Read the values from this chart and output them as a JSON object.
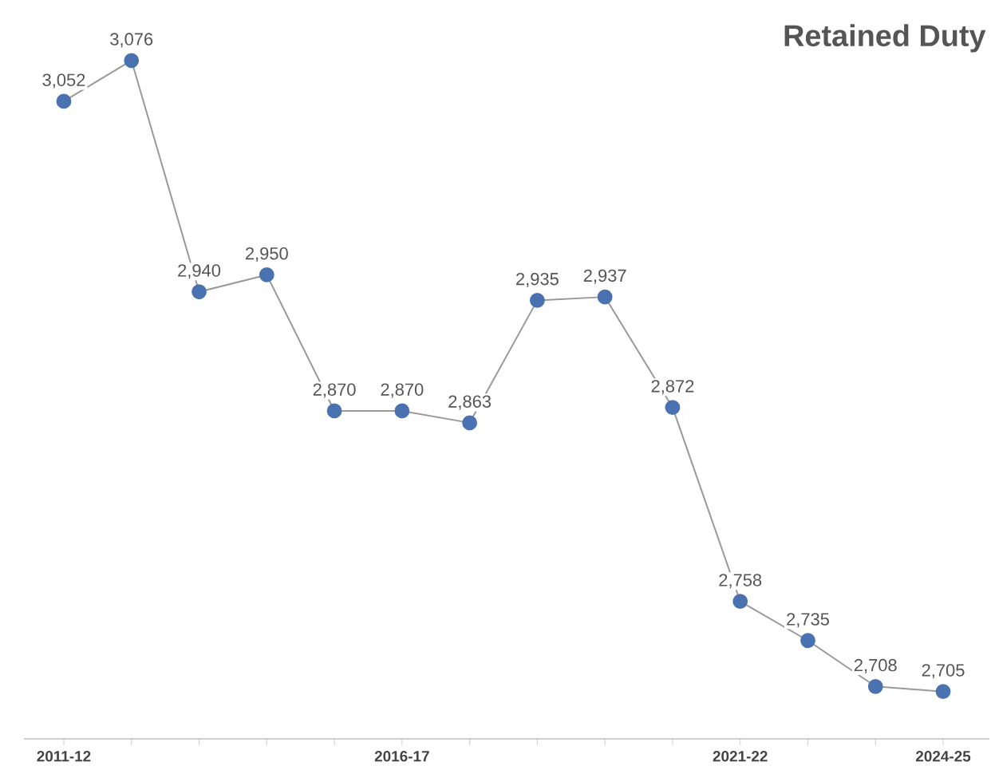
{
  "chart_data": {
    "type": "line",
    "title": "Retained Duty",
    "categories": [
      "2011-12",
      null,
      null,
      null,
      null,
      "2016-17",
      null,
      null,
      null,
      null,
      "2021-22",
      null,
      null,
      "2024-25"
    ],
    "series": [
      {
        "color": "#4a72b0",
        "values": [
          3052,
          3076,
          2940,
          2950,
          2870,
          2870,
          2863,
          2935,
          2937,
          2872,
          2758,
          2735,
          2708,
          2705
        ],
        "value_labels": [
          "3,052",
          "3,076",
          "2,940",
          "2,950",
          "2,870",
          "2,870",
          "2,863",
          "2,935",
          "2,937",
          "2,872",
          "2,758",
          "2,735",
          "2,708",
          "2,705"
        ]
      }
    ],
    "marker": "circle"
  }
}
